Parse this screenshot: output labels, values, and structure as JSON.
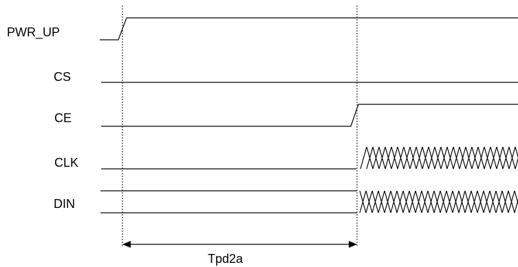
{
  "signals": [
    {
      "id": "pwr_up",
      "label": "PWR_UP"
    },
    {
      "id": "cs",
      "label": "CS"
    },
    {
      "id": "ce",
      "label": "CE"
    },
    {
      "id": "clk",
      "label": "CLK"
    },
    {
      "id": "din",
      "label": "DIN"
    }
  ],
  "timing": {
    "label": "Tpd2a"
  }
}
